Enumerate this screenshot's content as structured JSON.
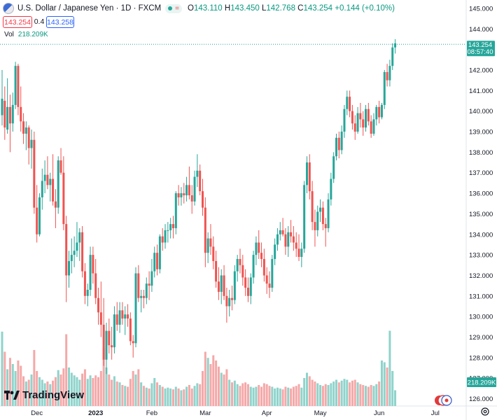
{
  "header": {
    "title": "U.S. Dollar / Japanese Yen · 1D · FXCM",
    "eq_symbol": "=",
    "open_label": "O",
    "open": "143.110",
    "high_label": "H",
    "high": "143.450",
    "low_label": "L",
    "low": "142.768",
    "close_label": "C",
    "close": "143.254",
    "change": "+0.144 (+0.10%)"
  },
  "quote": {
    "sell": "143.254",
    "spread": "0.4",
    "buy": "143.258"
  },
  "volume": {
    "label": "Vol",
    "value": "218.209K"
  },
  "price_tag": {
    "price": "143.254",
    "countdown": "08:57:40"
  },
  "volume_tag": "218.209K",
  "logo_text": "TradingView",
  "icons": [
    "flag-icon",
    "settings-icon",
    "tradingview-logo-icon",
    "currency-flags-icon"
  ],
  "colors": {
    "up": "#26a69a",
    "down": "#ef5350",
    "vol_up": "#8fd3cb",
    "vol_down": "#f5a8a8",
    "last_line": "#26a69a"
  },
  "chart_data": {
    "type": "candlestick",
    "title": "U.S. Dollar / Japanese Yen · 1D · FXCM",
    "ylim": [
      125.7,
      145.4
    ],
    "y_ticks": [
      "145.000",
      "144.000",
      "143.000",
      "142.000",
      "141.000",
      "140.000",
      "139.000",
      "138.000",
      "137.000",
      "136.000",
      "135.000",
      "134.000",
      "133.000",
      "132.000",
      "131.000",
      "130.000",
      "129.000",
      "128.000",
      "127.000",
      "126.000"
    ],
    "x_ticks": [
      {
        "label": "Dec",
        "index": 13
      },
      {
        "label": "2023",
        "index": 35
      },
      {
        "label": "Feb",
        "index": 56
      },
      {
        "label": "Mar",
        "index": 76
      },
      {
        "label": "Apr",
        "index": 99
      },
      {
        "label": "May",
        "index": 119
      },
      {
        "label": "Jun",
        "index": 141
      },
      {
        "label": "Jul",
        "index": 162
      }
    ],
    "last_price": 143.254,
    "candles": [
      {
        "o": 139.8,
        "h": 142.0,
        "l": 139.3,
        "c": 140.6,
        "v": 0.85
      },
      {
        "o": 140.5,
        "h": 141.2,
        "l": 138.6,
        "c": 139.2,
        "v": 0.62
      },
      {
        "o": 139.1,
        "h": 141.6,
        "l": 138.9,
        "c": 140.2,
        "v": 0.42
      },
      {
        "o": 140.2,
        "h": 140.8,
        "l": 138.0,
        "c": 139.4,
        "v": 0.55
      },
      {
        "o": 139.4,
        "h": 140.9,
        "l": 139.0,
        "c": 140.3,
        "v": 0.48
      },
      {
        "o": 140.3,
        "h": 142.4,
        "l": 140.1,
        "c": 142.2,
        "v": 0.4
      },
      {
        "o": 142.2,
        "h": 142.3,
        "l": 139.8,
        "c": 140.2,
        "v": 0.52
      },
      {
        "o": 140.2,
        "h": 141.2,
        "l": 139.0,
        "c": 139.5,
        "v": 0.46
      },
      {
        "o": 139.5,
        "h": 139.9,
        "l": 138.4,
        "c": 138.9,
        "v": 0.34
      },
      {
        "o": 138.9,
        "h": 139.5,
        "l": 138.1,
        "c": 139.2,
        "v": 0.28
      },
      {
        "o": 139.2,
        "h": 139.3,
        "l": 137.4,
        "c": 138.2,
        "v": 0.3
      },
      {
        "o": 138.2,
        "h": 139.1,
        "l": 137.2,
        "c": 138.6,
        "v": 0.36
      },
      {
        "o": 138.6,
        "h": 139.0,
        "l": 135.0,
        "c": 135.3,
        "v": 0.64
      },
      {
        "o": 135.3,
        "h": 136.4,
        "l": 133.6,
        "c": 134.0,
        "v": 0.4
      },
      {
        "o": 134.0,
        "h": 136.0,
        "l": 133.9,
        "c": 135.8,
        "v": 0.33
      },
      {
        "o": 135.8,
        "h": 137.2,
        "l": 135.2,
        "c": 136.6,
        "v": 0.3
      },
      {
        "o": 136.6,
        "h": 137.6,
        "l": 136.0,
        "c": 136.9,
        "v": 0.26
      },
      {
        "o": 136.9,
        "h": 137.8,
        "l": 136.2,
        "c": 136.4,
        "v": 0.28
      },
      {
        "o": 136.4,
        "h": 137.0,
        "l": 135.6,
        "c": 136.7,
        "v": 0.25
      },
      {
        "o": 136.7,
        "h": 137.9,
        "l": 135.4,
        "c": 135.6,
        "v": 0.29
      },
      {
        "o": 135.6,
        "h": 136.2,
        "l": 134.3,
        "c": 135.3,
        "v": 0.33
      },
      {
        "o": 135.3,
        "h": 137.8,
        "l": 135.0,
        "c": 137.6,
        "v": 0.41
      },
      {
        "o": 137.6,
        "h": 138.2,
        "l": 136.9,
        "c": 137.0,
        "v": 0.36
      },
      {
        "o": 137.0,
        "h": 137.8,
        "l": 134.2,
        "c": 134.5,
        "v": 0.43
      },
      {
        "o": 134.5,
        "h": 134.9,
        "l": 130.7,
        "c": 132.0,
        "v": 0.82
      },
      {
        "o": 132.0,
        "h": 133.2,
        "l": 131.4,
        "c": 132.7,
        "v": 0.44
      },
      {
        "o": 132.7,
        "h": 133.8,
        "l": 132.1,
        "c": 133.0,
        "v": 0.38
      },
      {
        "o": 133.0,
        "h": 133.9,
        "l": 132.4,
        "c": 133.2,
        "v": 0.35
      },
      {
        "o": 133.2,
        "h": 134.6,
        "l": 132.9,
        "c": 133.6,
        "v": 0.33
      },
      {
        "o": 133.6,
        "h": 134.3,
        "l": 132.7,
        "c": 134.1,
        "v": 0.3
      },
      {
        "o": 134.1,
        "h": 134.4,
        "l": 131.9,
        "c": 132.2,
        "v": 0.37
      },
      {
        "o": 132.2,
        "h": 132.6,
        "l": 130.6,
        "c": 131.0,
        "v": 0.42
      },
      {
        "o": 131.0,
        "h": 131.6,
        "l": 130.5,
        "c": 131.3,
        "v": 0.31
      },
      {
        "o": 131.3,
        "h": 133.4,
        "l": 131.0,
        "c": 133.0,
        "v": 0.35
      },
      {
        "o": 133.0,
        "h": 133.4,
        "l": 131.6,
        "c": 132.1,
        "v": 0.32
      },
      {
        "o": 132.1,
        "h": 132.8,
        "l": 130.6,
        "c": 130.9,
        "v": 0.35
      },
      {
        "o": 130.9,
        "h": 131.4,
        "l": 129.6,
        "c": 130.2,
        "v": 0.33
      },
      {
        "o": 130.2,
        "h": 131.7,
        "l": 129.0,
        "c": 129.6,
        "v": 0.4
      },
      {
        "o": 129.6,
        "h": 130.9,
        "l": 127.6,
        "c": 127.9,
        "v": 0.66
      },
      {
        "o": 127.9,
        "h": 129.7,
        "l": 127.2,
        "c": 129.3,
        "v": 0.44
      },
      {
        "o": 129.3,
        "h": 129.9,
        "l": 128.2,
        "c": 128.6,
        "v": 0.36
      },
      {
        "o": 128.6,
        "h": 129.5,
        "l": 127.9,
        "c": 128.5,
        "v": 0.3
      },
      {
        "o": 128.5,
        "h": 130.5,
        "l": 128.2,
        "c": 130.1,
        "v": 0.34
      },
      {
        "o": 130.1,
        "h": 130.7,
        "l": 129.3,
        "c": 129.6,
        "v": 0.28
      },
      {
        "o": 129.6,
        "h": 130.7,
        "l": 129.2,
        "c": 130.3,
        "v": 0.27
      },
      {
        "o": 130.3,
        "h": 130.7,
        "l": 129.6,
        "c": 129.9,
        "v": 0.24
      },
      {
        "o": 129.9,
        "h": 130.5,
        "l": 129.1,
        "c": 130.1,
        "v": 0.23
      },
      {
        "o": 130.1,
        "h": 130.6,
        "l": 129.5,
        "c": 129.9,
        "v": 0.22
      },
      {
        "o": 129.9,
        "h": 130.2,
        "l": 128.6,
        "c": 128.8,
        "v": 0.31
      },
      {
        "o": 128.8,
        "h": 129.1,
        "l": 128.0,
        "c": 128.7,
        "v": 0.4
      },
      {
        "o": 128.7,
        "h": 132.4,
        "l": 128.5,
        "c": 132.1,
        "v": 0.36
      },
      {
        "o": 132.1,
        "h": 132.5,
        "l": 130.7,
        "c": 130.9,
        "v": 0.42
      },
      {
        "o": 130.9,
        "h": 131.3,
        "l": 130.2,
        "c": 131.0,
        "v": 0.27
      },
      {
        "o": 131.0,
        "h": 131.3,
        "l": 130.4,
        "c": 130.9,
        "v": 0.23
      },
      {
        "o": 130.9,
        "h": 131.9,
        "l": 130.6,
        "c": 131.6,
        "v": 0.21
      },
      {
        "o": 131.6,
        "h": 132.2,
        "l": 130.8,
        "c": 131.5,
        "v": 0.2
      },
      {
        "o": 131.5,
        "h": 132.8,
        "l": 131.2,
        "c": 132.2,
        "v": 0.26
      },
      {
        "o": 132.2,
        "h": 133.4,
        "l": 131.9,
        "c": 133.1,
        "v": 0.32
      },
      {
        "o": 133.1,
        "h": 133.5,
        "l": 132.0,
        "c": 132.3,
        "v": 0.27
      },
      {
        "o": 132.3,
        "h": 134.0,
        "l": 132.1,
        "c": 133.9,
        "v": 0.24
      },
      {
        "o": 133.9,
        "h": 134.3,
        "l": 133.2,
        "c": 133.6,
        "v": 0.22
      },
      {
        "o": 133.6,
        "h": 134.5,
        "l": 133.3,
        "c": 134.2,
        "v": 0.2
      },
      {
        "o": 134.2,
        "h": 134.6,
        "l": 133.6,
        "c": 134.2,
        "v": 0.21
      },
      {
        "o": 134.2,
        "h": 134.8,
        "l": 133.8,
        "c": 134.5,
        "v": 0.2
      },
      {
        "o": 134.5,
        "h": 134.9,
        "l": 133.8,
        "c": 134.3,
        "v": 0.19
      },
      {
        "o": 134.3,
        "h": 136.1,
        "l": 134.0,
        "c": 136.0,
        "v": 0.22
      },
      {
        "o": 136.0,
        "h": 136.4,
        "l": 135.4,
        "c": 135.8,
        "v": 0.2
      },
      {
        "o": 135.8,
        "h": 136.3,
        "l": 135.4,
        "c": 136.0,
        "v": 0.18
      },
      {
        "o": 136.0,
        "h": 136.5,
        "l": 135.5,
        "c": 135.9,
        "v": 0.19
      },
      {
        "o": 135.9,
        "h": 136.8,
        "l": 135.6,
        "c": 136.4,
        "v": 0.22
      },
      {
        "o": 136.4,
        "h": 137.3,
        "l": 135.7,
        "c": 135.9,
        "v": 0.24
      },
      {
        "o": 135.9,
        "h": 136.4,
        "l": 135.0,
        "c": 135.6,
        "v": 0.2
      },
      {
        "o": 135.6,
        "h": 137.1,
        "l": 135.4,
        "c": 136.8,
        "v": 0.23
      },
      {
        "o": 136.8,
        "h": 137.9,
        "l": 136.3,
        "c": 137.1,
        "v": 0.26
      },
      {
        "o": 137.1,
        "h": 137.4,
        "l": 135.9,
        "c": 136.1,
        "v": 0.25
      },
      {
        "o": 136.1,
        "h": 136.7,
        "l": 134.9,
        "c": 135.3,
        "v": 0.4
      },
      {
        "o": 135.3,
        "h": 135.8,
        "l": 132.4,
        "c": 133.1,
        "v": 0.62
      },
      {
        "o": 133.1,
        "h": 134.1,
        "l": 132.6,
        "c": 133.8,
        "v": 0.55
      },
      {
        "o": 133.8,
        "h": 134.5,
        "l": 133.0,
        "c": 133.4,
        "v": 0.48
      },
      {
        "o": 133.4,
        "h": 133.9,
        "l": 132.3,
        "c": 132.7,
        "v": 0.58
      },
      {
        "o": 132.7,
        "h": 133.2,
        "l": 131.4,
        "c": 131.7,
        "v": 0.52
      },
      {
        "o": 131.7,
        "h": 132.4,
        "l": 130.8,
        "c": 131.2,
        "v": 0.45
      },
      {
        "o": 131.2,
        "h": 132.3,
        "l": 130.6,
        "c": 132.0,
        "v": 0.38
      },
      {
        "o": 132.0,
        "h": 132.5,
        "l": 130.8,
        "c": 131.0,
        "v": 0.36
      },
      {
        "o": 131.0,
        "h": 131.4,
        "l": 129.7,
        "c": 130.5,
        "v": 0.42
      },
      {
        "o": 130.5,
        "h": 131.3,
        "l": 130.0,
        "c": 130.9,
        "v": 0.3
      },
      {
        "o": 130.9,
        "h": 131.5,
        "l": 130.3,
        "c": 130.8,
        "v": 0.27
      },
      {
        "o": 130.8,
        "h": 132.5,
        "l": 130.6,
        "c": 132.2,
        "v": 0.29
      },
      {
        "o": 132.2,
        "h": 133.0,
        "l": 131.7,
        "c": 132.8,
        "v": 0.25
      },
      {
        "o": 132.8,
        "h": 133.3,
        "l": 132.1,
        "c": 132.5,
        "v": 0.23
      },
      {
        "o": 132.5,
        "h": 133.0,
        "l": 131.5,
        "c": 131.9,
        "v": 0.26
      },
      {
        "o": 131.9,
        "h": 132.3,
        "l": 131.0,
        "c": 131.4,
        "v": 0.27
      },
      {
        "o": 131.4,
        "h": 131.9,
        "l": 130.7,
        "c": 131.0,
        "v": 0.25
      },
      {
        "o": 131.0,
        "h": 132.1,
        "l": 130.6,
        "c": 131.9,
        "v": 0.22
      },
      {
        "o": 131.9,
        "h": 133.2,
        "l": 131.6,
        "c": 133.0,
        "v": 0.21
      },
      {
        "o": 133.0,
        "h": 133.9,
        "l": 132.5,
        "c": 133.6,
        "v": 0.22
      },
      {
        "o": 133.6,
        "h": 134.2,
        "l": 132.8,
        "c": 133.1,
        "v": 0.24
      },
      {
        "o": 133.1,
        "h": 133.6,
        "l": 132.4,
        "c": 132.8,
        "v": 0.22
      },
      {
        "o": 132.8,
        "h": 133.3,
        "l": 131.7,
        "c": 132.0,
        "v": 0.26
      },
      {
        "o": 132.0,
        "h": 132.4,
        "l": 131.1,
        "c": 131.6,
        "v": 0.25
      },
      {
        "o": 131.6,
        "h": 132.2,
        "l": 130.9,
        "c": 131.4,
        "v": 0.23
      },
      {
        "o": 131.4,
        "h": 133.0,
        "l": 131.2,
        "c": 132.8,
        "v": 0.22
      },
      {
        "o": 132.8,
        "h": 133.8,
        "l": 132.5,
        "c": 133.5,
        "v": 0.2
      },
      {
        "o": 133.5,
        "h": 134.3,
        "l": 133.2,
        "c": 134.0,
        "v": 0.21
      },
      {
        "o": 134.0,
        "h": 134.6,
        "l": 133.7,
        "c": 134.2,
        "v": 0.2
      },
      {
        "o": 134.2,
        "h": 134.8,
        "l": 133.9,
        "c": 134.0,
        "v": 0.19
      },
      {
        "o": 134.0,
        "h": 134.3,
        "l": 133.0,
        "c": 133.4,
        "v": 0.22
      },
      {
        "o": 133.4,
        "h": 134.4,
        "l": 132.9,
        "c": 134.1,
        "v": 0.21
      },
      {
        "o": 134.1,
        "h": 134.7,
        "l": 133.6,
        "c": 133.9,
        "v": 0.2
      },
      {
        "o": 133.9,
        "h": 134.4,
        "l": 133.2,
        "c": 133.6,
        "v": 0.22
      },
      {
        "o": 133.6,
        "h": 134.1,
        "l": 132.9,
        "c": 133.3,
        "v": 0.23
      },
      {
        "o": 133.3,
        "h": 134.0,
        "l": 132.7,
        "c": 132.9,
        "v": 0.25
      },
      {
        "o": 132.9,
        "h": 133.6,
        "l": 132.4,
        "c": 133.3,
        "v": 0.21
      },
      {
        "o": 133.3,
        "h": 136.6,
        "l": 133.1,
        "c": 136.4,
        "v": 0.32
      },
      {
        "o": 136.4,
        "h": 137.8,
        "l": 136.0,
        "c": 137.5,
        "v": 0.38
      },
      {
        "o": 137.5,
        "h": 137.9,
        "l": 135.7,
        "c": 136.1,
        "v": 0.34
      },
      {
        "o": 136.1,
        "h": 136.6,
        "l": 134.2,
        "c": 134.6,
        "v": 0.3
      },
      {
        "o": 134.6,
        "h": 135.2,
        "l": 133.4,
        "c": 134.2,
        "v": 0.28
      },
      {
        "o": 134.2,
        "h": 135.4,
        "l": 133.9,
        "c": 135.1,
        "v": 0.26
      },
      {
        "o": 135.1,
        "h": 135.7,
        "l": 134.6,
        "c": 135.3,
        "v": 0.24
      },
      {
        "o": 135.3,
        "h": 135.6,
        "l": 134.2,
        "c": 134.5,
        "v": 0.23
      },
      {
        "o": 134.5,
        "h": 134.8,
        "l": 133.4,
        "c": 134.3,
        "v": 0.25
      },
      {
        "o": 134.3,
        "h": 136.0,
        "l": 134.1,
        "c": 135.7,
        "v": 0.24
      },
      {
        "o": 135.7,
        "h": 137.0,
        "l": 135.4,
        "c": 136.7,
        "v": 0.26
      },
      {
        "o": 136.7,
        "h": 138.0,
        "l": 136.5,
        "c": 137.8,
        "v": 0.28
      },
      {
        "o": 137.8,
        "h": 138.9,
        "l": 137.6,
        "c": 138.7,
        "v": 0.3
      },
      {
        "o": 138.7,
        "h": 139.0,
        "l": 137.7,
        "c": 138.1,
        "v": 0.27
      },
      {
        "o": 138.1,
        "h": 139.3,
        "l": 137.9,
        "c": 139.0,
        "v": 0.29
      },
      {
        "o": 139.0,
        "h": 140.3,
        "l": 138.7,
        "c": 140.1,
        "v": 0.31
      },
      {
        "o": 140.1,
        "h": 141.0,
        "l": 139.8,
        "c": 140.7,
        "v": 0.3
      },
      {
        "o": 140.7,
        "h": 141.0,
        "l": 139.7,
        "c": 140.0,
        "v": 0.27
      },
      {
        "o": 140.0,
        "h": 140.3,
        "l": 139.1,
        "c": 139.4,
        "v": 0.29
      },
      {
        "o": 139.4,
        "h": 139.8,
        "l": 138.6,
        "c": 139.0,
        "v": 0.3
      },
      {
        "o": 139.0,
        "h": 140.2,
        "l": 138.9,
        "c": 139.9,
        "v": 0.27
      },
      {
        "o": 139.9,
        "h": 140.4,
        "l": 139.2,
        "c": 139.6,
        "v": 0.25
      },
      {
        "o": 139.6,
        "h": 140.0,
        "l": 138.8,
        "c": 139.2,
        "v": 0.24
      },
      {
        "o": 139.2,
        "h": 140.3,
        "l": 139.0,
        "c": 140.1,
        "v": 0.23
      },
      {
        "o": 140.1,
        "h": 140.4,
        "l": 139.3,
        "c": 139.5,
        "v": 0.22
      },
      {
        "o": 139.5,
        "h": 139.8,
        "l": 138.7,
        "c": 138.9,
        "v": 0.24
      },
      {
        "o": 138.9,
        "h": 139.9,
        "l": 138.8,
        "c": 139.6,
        "v": 0.23
      },
      {
        "o": 139.6,
        "h": 140.3,
        "l": 139.3,
        "c": 140.2,
        "v": 0.25
      },
      {
        "o": 140.2,
        "h": 140.5,
        "l": 139.4,
        "c": 139.7,
        "v": 0.28
      },
      {
        "o": 139.7,
        "h": 140.4,
        "l": 139.6,
        "c": 140.3,
        "v": 0.52
      },
      {
        "o": 140.3,
        "h": 142.0,
        "l": 140.1,
        "c": 141.9,
        "v": 0.5
      },
      {
        "o": 141.9,
        "h": 142.3,
        "l": 141.2,
        "c": 141.5,
        "v": 0.44
      },
      {
        "o": 141.5,
        "h": 142.5,
        "l": 141.2,
        "c": 142.2,
        "v": 0.86
      },
      {
        "o": 142.2,
        "h": 143.3,
        "l": 142.0,
        "c": 143.1,
        "v": 0.4
      },
      {
        "o": 143.1,
        "h": 143.5,
        "l": 142.8,
        "c": 143.3,
        "v": 0.18
      }
    ]
  }
}
